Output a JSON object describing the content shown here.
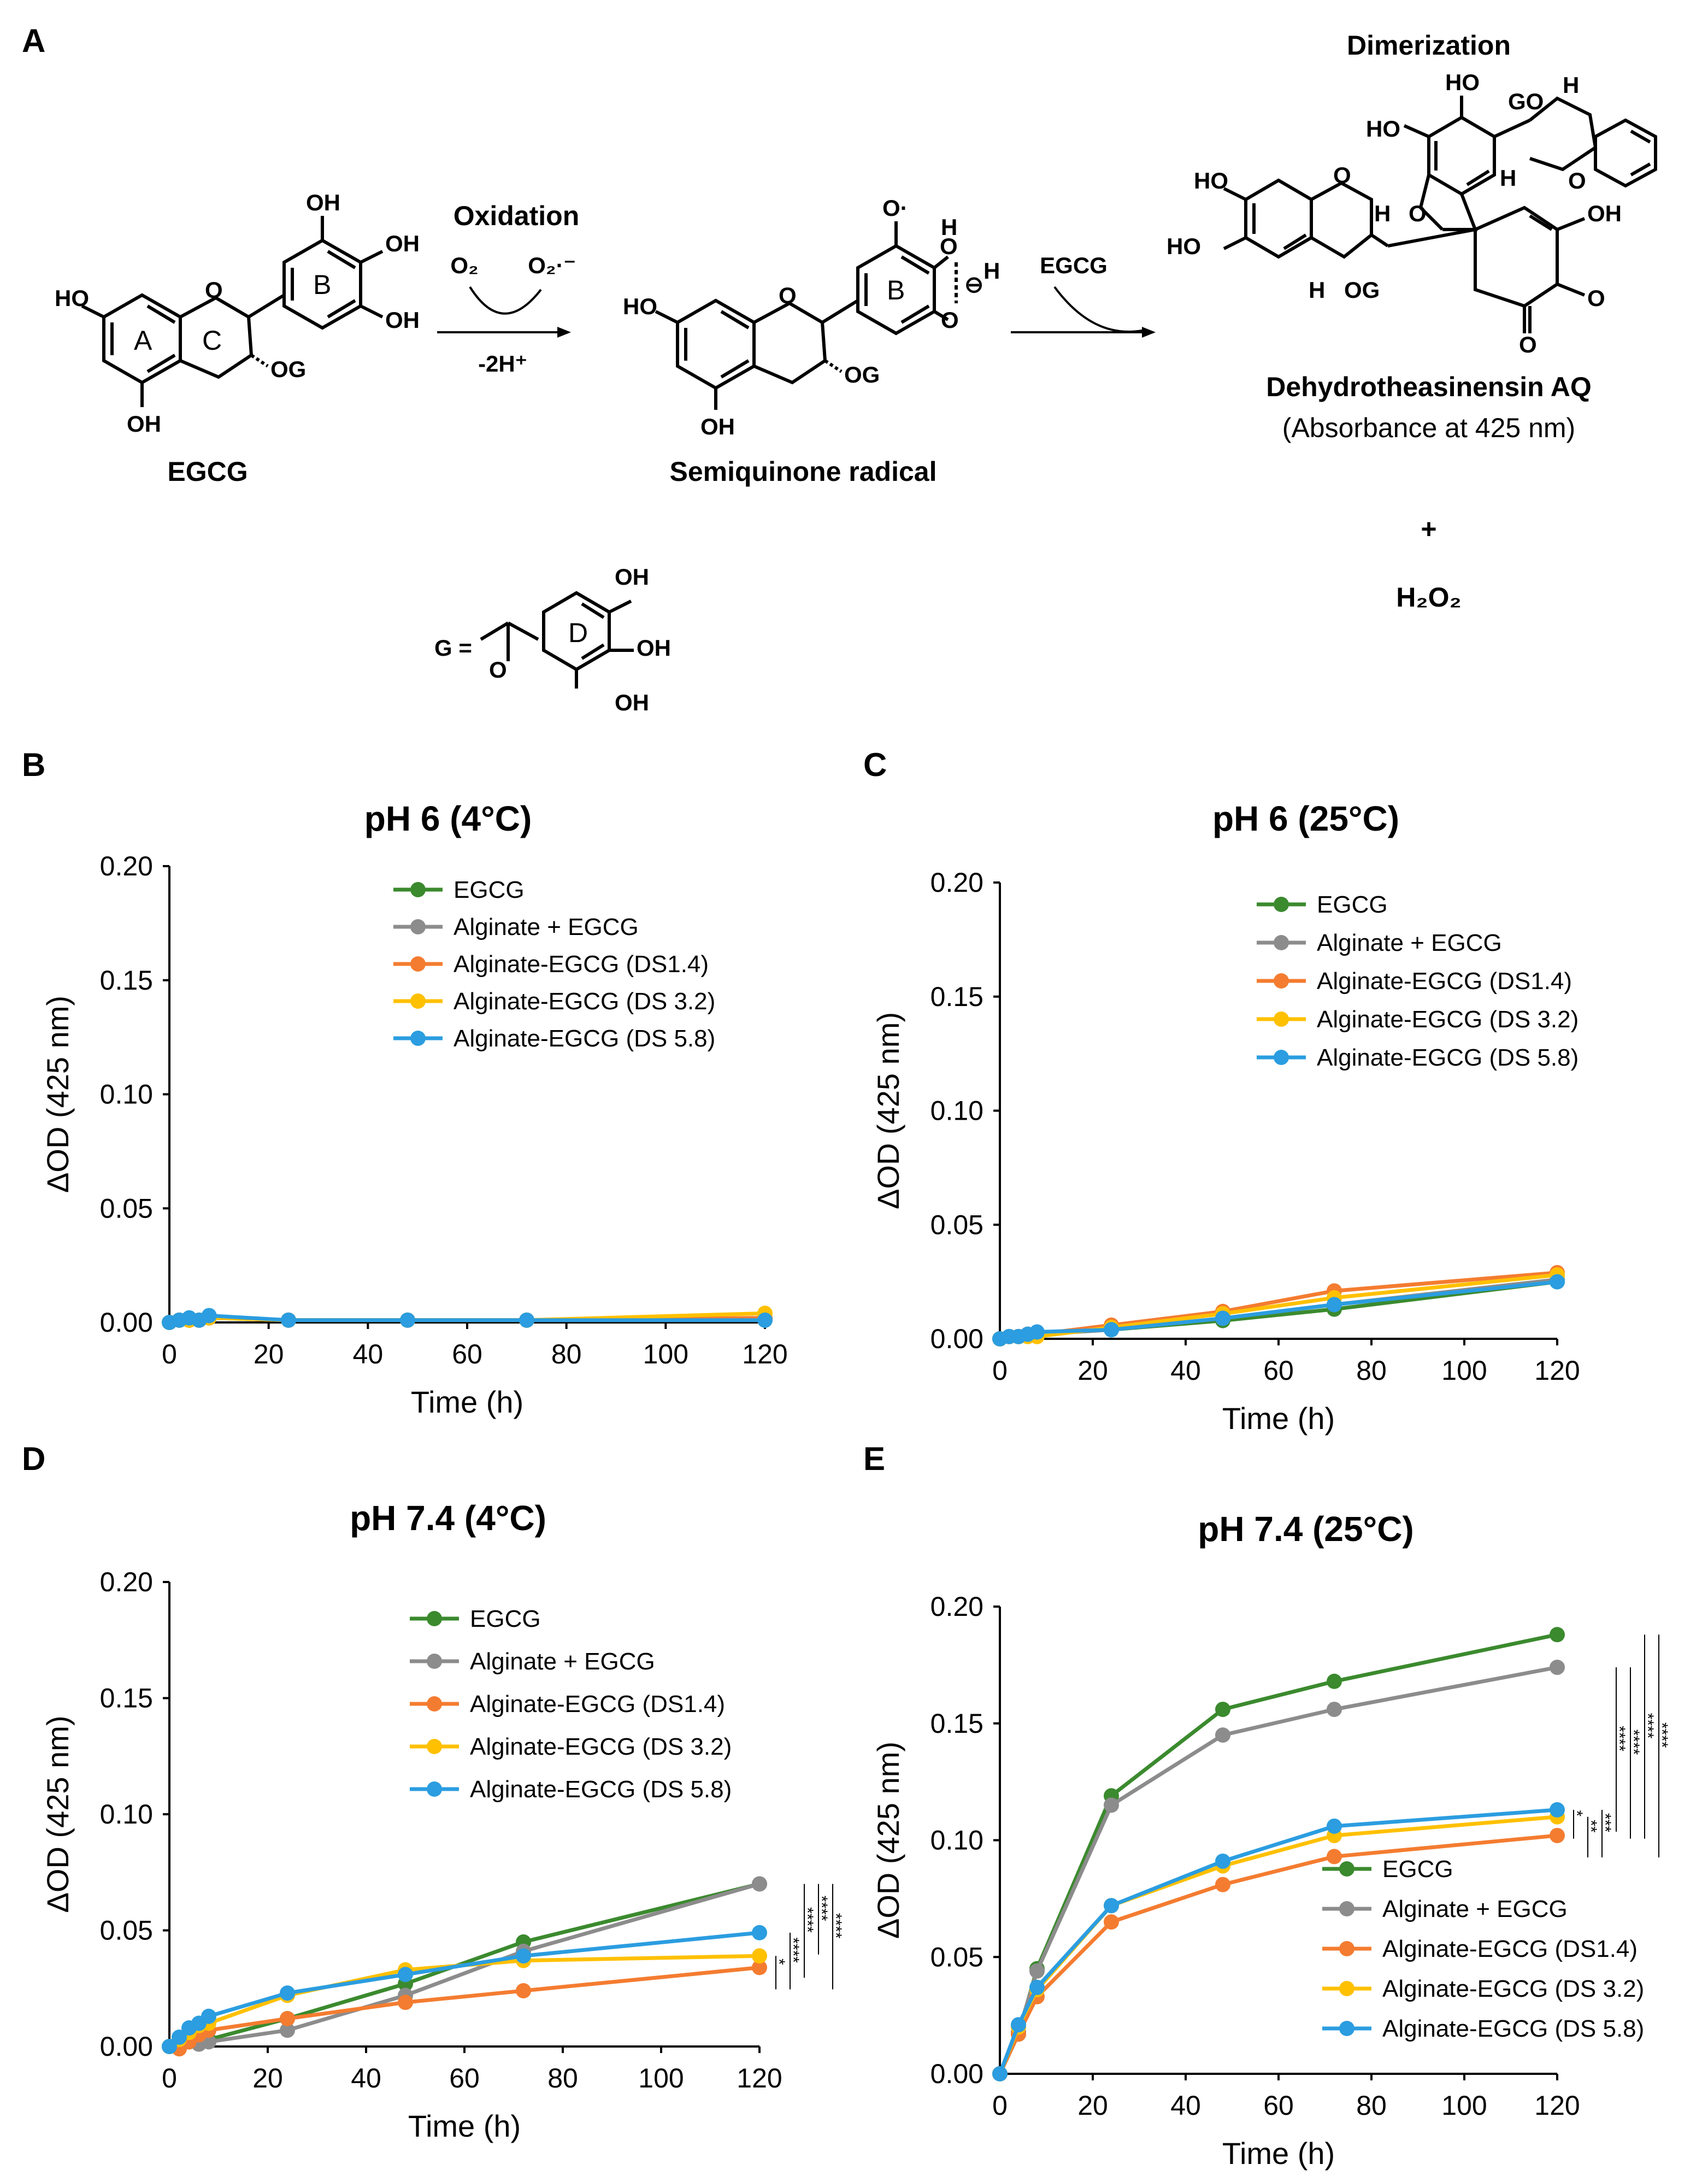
{
  "panels": [
    "A",
    "B",
    "C",
    "D",
    "E"
  ],
  "scheme": {
    "step1_label": "Oxidation",
    "o2": "O₂",
    "superoxide": "O₂·⁻",
    "minus_2h": "-2H⁺",
    "step2_reagent": "EGCG",
    "step3_label": "Dimerization",
    "reactant": "EGCG",
    "intermediate": "Semiquinone radical",
    "product": "Dehydrotheasinensin AQ",
    "product_note": "(Absorbance at 425 nm)",
    "plus": "+",
    "byproduct": "H₂O₂",
    "galloyl_def": "G =",
    "atoms": {
      "oh": "OH",
      "ho": "HO",
      "o": "O",
      "og": "OG",
      "go": "GO",
      "h": "H",
      "ring_a": "A",
      "ring_b": "B",
      "ring_c": "C",
      "ring_d": "D",
      "radical_o": "O·",
      "minus_circle": "⊖"
    }
  },
  "significance_marks": [
    "****",
    "****",
    "****",
    "****",
    "*",
    "**",
    "***"
  ],
  "chart_data": [
    {
      "panel": "B",
      "type": "line",
      "title": "pH 6 (4°C)",
      "xlabel": "Time (h)",
      "ylabel": "ΔOD (425 nm)",
      "xlim": [
        0,
        120
      ],
      "ylim": [
        0,
        0.2
      ],
      "xticks": [
        "0",
        "20",
        "40",
        "60",
        "80",
        "100",
        "120"
      ],
      "yticks": [
        "0.00",
        "0.05",
        "0.10",
        "0.15",
        "0.20"
      ],
      "legend_position": "top-right",
      "series": [
        {
          "name": "EGCG",
          "color": "#3b8a2e",
          "x": [
            0,
            2,
            4,
            6,
            8,
            24,
            48,
            72,
            120
          ],
          "y": [
            0,
            0.001,
            0.001,
            0.001,
            0.002,
            0.001,
            0.001,
            0.001,
            0.001
          ]
        },
        {
          "name": "Alginate + EGCG",
          "color": "#8c8c8c",
          "x": [
            0,
            2,
            4,
            6,
            8,
            24,
            48,
            72,
            120
          ],
          "y": [
            0,
            0.001,
            0.001,
            0.001,
            0.002,
            0.001,
            0.001,
            0.001,
            0.001
          ]
        },
        {
          "name": "Alginate-EGCG (DS1.4)",
          "color": "#f47c30",
          "x": [
            0,
            2,
            4,
            6,
            8,
            24,
            48,
            72,
            120
          ],
          "y": [
            0,
            0.001,
            0.001,
            0.001,
            0.002,
            0.001,
            0.001,
            0.001,
            0.002
          ]
        },
        {
          "name": "Alginate-EGCG (DS 3.2)",
          "color": "#ffc000",
          "x": [
            0,
            2,
            4,
            6,
            8,
            24,
            48,
            72,
            120
          ],
          "y": [
            0,
            0.001,
            0.001,
            0.001,
            0.002,
            0.001,
            0.001,
            0.001,
            0.004
          ]
        },
        {
          "name": "Alginate-EGCG (DS 5.8)",
          "color": "#2b9de0",
          "x": [
            0,
            2,
            4,
            6,
            8,
            24,
            48,
            72,
            120
          ],
          "y": [
            0,
            0.001,
            0.002,
            0.001,
            0.003,
            0.001,
            0.001,
            0.001,
            0.001
          ]
        }
      ]
    },
    {
      "panel": "C",
      "type": "line",
      "title": "pH 6 (25°C)",
      "xlabel": "Time (h)",
      "ylabel": "ΔOD (425 nm)",
      "xlim": [
        0,
        120
      ],
      "ylim": [
        0,
        0.2
      ],
      "xticks": [
        "0",
        "20",
        "40",
        "60",
        "80",
        "100",
        "120"
      ],
      "yticks": [
        "0.00",
        "0.05",
        "0.10",
        "0.15",
        "0.20"
      ],
      "legend_position": "top-right",
      "series": [
        {
          "name": "EGCG",
          "color": "#3b8a2e",
          "x": [
            0,
            2,
            4,
            6,
            8,
            24,
            48,
            72,
            120
          ],
          "y": [
            0,
            0.001,
            0.001,
            0.002,
            0.002,
            0.004,
            0.008,
            0.013,
            0.025
          ]
        },
        {
          "name": "Alginate + EGCG",
          "color": "#8c8c8c",
          "x": [
            0,
            2,
            4,
            6,
            8,
            24,
            48,
            72,
            120
          ],
          "y": [
            0,
            0.001,
            0.001,
            0.002,
            0.002,
            0.004,
            0.009,
            0.015,
            0.026
          ]
        },
        {
          "name": "Alginate-EGCG (DS1.4)",
          "color": "#f47c30",
          "x": [
            0,
            2,
            4,
            6,
            8,
            24,
            48,
            72,
            120
          ],
          "y": [
            0,
            0.001,
            0.001,
            0.002,
            0.002,
            0.006,
            0.012,
            0.021,
            0.029
          ]
        },
        {
          "name": "Alginate-EGCG (DS 3.2)",
          "color": "#ffc000",
          "x": [
            0,
            2,
            4,
            6,
            8,
            24,
            48,
            72,
            120
          ],
          "y": [
            0,
            0.001,
            0.001,
            0.001,
            0.001,
            0.005,
            0.011,
            0.018,
            0.028
          ]
        },
        {
          "name": "Alginate-EGCG (DS 5.8)",
          "color": "#2b9de0",
          "x": [
            0,
            2,
            4,
            6,
            8,
            24,
            48,
            72,
            120
          ],
          "y": [
            0,
            0.001,
            0.001,
            0.002,
            0.003,
            0.004,
            0.009,
            0.015,
            0.025
          ]
        }
      ]
    },
    {
      "panel": "D",
      "type": "line",
      "title": "pH 7.4 (4°C)",
      "xlabel": "Time (h)",
      "ylabel": "ΔOD (425 nm)",
      "xlim": [
        0,
        120
      ],
      "ylim": [
        0,
        0.2
      ],
      "xticks": [
        "0",
        "20",
        "40",
        "60",
        "80",
        "100",
        "120"
      ],
      "yticks": [
        "0.00",
        "0.05",
        "0.10",
        "0.15",
        "0.20"
      ],
      "legend_position": "top-right",
      "series": [
        {
          "name": "EGCG",
          "color": "#3b8a2e",
          "x": [
            0,
            2,
            4,
            6,
            8,
            24,
            48,
            72,
            120
          ],
          "y": [
            0,
            0.001,
            0.002,
            0.002,
            0.003,
            0.012,
            0.027,
            0.045,
            0.07
          ]
        },
        {
          "name": "Alginate + EGCG",
          "color": "#8c8c8c",
          "x": [
            0,
            2,
            4,
            6,
            8,
            24,
            48,
            72,
            120
          ],
          "y": [
            0,
            0.001,
            0.002,
            0.001,
            0.002,
            0.007,
            0.022,
            0.041,
            0.07
          ]
        },
        {
          "name": "Alginate-EGCG (DS1.4)",
          "color": "#f47c30",
          "x": [
            0,
            2,
            4,
            6,
            8,
            24,
            48,
            72,
            120
          ],
          "y": [
            0,
            -0.001,
            0.002,
            0.005,
            0.007,
            0.012,
            0.019,
            0.024,
            0.034
          ]
        },
        {
          "name": "Alginate-EGCG (DS 3.2)",
          "color": "#ffc000",
          "x": [
            0,
            2,
            4,
            6,
            8,
            24,
            48,
            72,
            120
          ],
          "y": [
            0,
            0.003,
            0.006,
            0.009,
            0.01,
            0.022,
            0.033,
            0.037,
            0.039
          ]
        },
        {
          "name": "Alginate-EGCG (DS 5.8)",
          "color": "#2b9de0",
          "x": [
            0,
            2,
            4,
            6,
            8,
            24,
            48,
            72,
            120
          ],
          "y": [
            0,
            0.004,
            0.008,
            0.01,
            0.013,
            0.023,
            0.031,
            0.039,
            0.049
          ]
        }
      ]
    },
    {
      "panel": "E",
      "type": "line",
      "title": "pH 7.4 (25°C)",
      "xlabel": "Time (h)",
      "ylabel": "ΔOD (425 nm)",
      "xlim": [
        0,
        120
      ],
      "ylim": [
        0,
        0.2
      ],
      "xticks": [
        "0",
        "20",
        "40",
        "60",
        "80",
        "100",
        "120"
      ],
      "yticks": [
        "0.00",
        "0.05",
        "0.10",
        "0.15",
        "0.20"
      ],
      "legend_position": "bottom-right",
      "series": [
        {
          "name": "EGCG",
          "color": "#3b8a2e",
          "x": [
            0,
            4,
            8,
            24,
            48,
            72,
            120
          ],
          "y": [
            0,
            0.017,
            0.045,
            0.119,
            0.156,
            0.168,
            0.188
          ]
        },
        {
          "name": "Alginate + EGCG",
          "color": "#8c8c8c",
          "x": [
            0,
            4,
            8,
            24,
            48,
            72,
            120
          ],
          "y": [
            0,
            0.018,
            0.044,
            0.115,
            0.145,
            0.156,
            0.174
          ]
        },
        {
          "name": "Alginate-EGCG (DS1.4)",
          "color": "#f47c30",
          "x": [
            0,
            4,
            8,
            24,
            48,
            72,
            120
          ],
          "y": [
            0,
            0.017,
            0.033,
            0.065,
            0.081,
            0.093,
            0.102
          ]
        },
        {
          "name": "Alginate-EGCG (DS 3.2)",
          "color": "#ffc000",
          "x": [
            0,
            4,
            8,
            24,
            48,
            72,
            120
          ],
          "y": [
            0,
            0.02,
            0.036,
            0.072,
            0.089,
            0.102,
            0.11
          ]
        },
        {
          "name": "Alginate-EGCG (DS 5.8)",
          "color": "#2b9de0",
          "x": [
            0,
            4,
            8,
            24,
            48,
            72,
            120
          ],
          "y": [
            0,
            0.021,
            0.037,
            0.072,
            0.091,
            0.106,
            0.113
          ]
        }
      ]
    }
  ]
}
